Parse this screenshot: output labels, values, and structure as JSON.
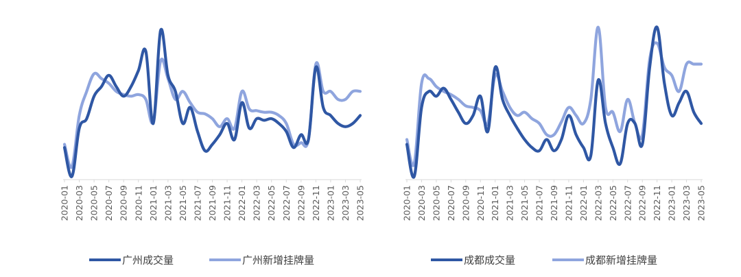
{
  "colors": {
    "dark": "#2F57A4",
    "light": "#8FA5DE",
    "axis": "#D9D9D9"
  },
  "chart_data": [
    {
      "type": "line",
      "categories": [
        "2020-01",
        "2020-02",
        "2020-03",
        "2020-04",
        "2020-05",
        "2020-06",
        "2020-07",
        "2020-08",
        "2020-09",
        "2020-10",
        "2020-11",
        "2020-12",
        "2021-01",
        "2021-02",
        "2021-03",
        "2021-04",
        "2021-05",
        "2021-06",
        "2021-07",
        "2021-08",
        "2021-09",
        "2021-10",
        "2021-11",
        "2021-12",
        "2022-01",
        "2022-02",
        "2022-03",
        "2022-04",
        "2022-05",
        "2022-06",
        "2022-07",
        "2022-08",
        "2022-09",
        "2022-10",
        "2022-11",
        "2022-12",
        "2023-01",
        "2023-02",
        "2023-03",
        "2023-04",
        "2023-05"
      ],
      "xtick_labels": [
        "2020-01",
        "2020-03",
        "2020-05",
        "2020-07",
        "2020-09",
        "2020-11",
        "2021-01",
        "2021-03",
        "2021-05",
        "2021-07",
        "2021-09",
        "2021-11",
        "2022-01",
        "2022-03",
        "2022-05",
        "2022-07",
        "2022-09",
        "2022-11",
        "2023-01",
        "2023-03",
        "2023-05"
      ],
      "series": [
        {
          "name": "广州成交量",
          "color": "#2F57A4",
          "values": [
            20,
            2,
            32,
            38,
            52,
            58,
            65,
            58,
            52,
            58,
            68,
            80,
            35,
            93,
            65,
            55,
            35,
            45,
            30,
            18,
            22,
            28,
            35,
            25,
            48,
            32,
            38,
            37,
            38,
            35,
            30,
            20,
            28,
            25,
            70,
            45,
            40,
            35,
            33,
            35,
            40
          ]
        },
        {
          "name": "广州新增挂牌量",
          "color": "#8FA5DE",
          "values": [
            22,
            8,
            40,
            55,
            66,
            63,
            60,
            55,
            53,
            52,
            53,
            50,
            36,
            74,
            63,
            50,
            55,
            48,
            42,
            41,
            38,
            33,
            38,
            32,
            55,
            44,
            43,
            42,
            42,
            40,
            35,
            22,
            23,
            25,
            72,
            55,
            55,
            50,
            50,
            55,
            55
          ]
        }
      ]
    },
    {
      "type": "line",
      "categories": [
        "2020-01",
        "2020-02",
        "2020-03",
        "2020-04",
        "2020-05",
        "2020-06",
        "2020-07",
        "2020-08",
        "2020-09",
        "2020-10",
        "2020-11",
        "2020-12",
        "2021-01",
        "2021-02",
        "2021-03",
        "2021-04",
        "2021-05",
        "2021-06",
        "2021-07",
        "2021-08",
        "2021-09",
        "2021-10",
        "2021-11",
        "2021-12",
        "2022-01",
        "2022-02",
        "2022-03",
        "2022-04",
        "2022-05",
        "2022-06",
        "2022-07",
        "2022-08",
        "2022-09",
        "2022-10",
        "2022-11",
        "2022-12",
        "2023-01",
        "2023-02",
        "2023-03",
        "2023-04",
        "2023-05"
      ],
      "xtick_labels": [
        "2020-01",
        "2020-03",
        "2020-05",
        "2020-07",
        "2020-09",
        "2020-11",
        "2021-01",
        "2021-03",
        "2021-05",
        "2021-07",
        "2021-09",
        "2021-11",
        "2022-01",
        "2022-03",
        "2022-05",
        "2022-07",
        "2022-09",
        "2022-11",
        "2023-01",
        "2023-03",
        "2023-05"
      ],
      "series": [
        {
          "name": "成都成交量",
          "color": "#2F57A4",
          "values": [
            22,
            2,
            45,
            55,
            52,
            57,
            50,
            42,
            35,
            40,
            52,
            30,
            70,
            50,
            40,
            32,
            25,
            20,
            18,
            25,
            18,
            25,
            40,
            28,
            20,
            15,
            62,
            35,
            20,
            10,
            35,
            35,
            22,
            70,
            95,
            60,
            40,
            48,
            55,
            42,
            35
          ]
        },
        {
          "name": "成都新增挂牌量",
          "color": "#8FA5DE",
          "values": [
            25,
            10,
            60,
            63,
            58,
            55,
            53,
            50,
            46,
            45,
            43,
            35,
            65,
            55,
            45,
            40,
            42,
            38,
            35,
            28,
            28,
            36,
            45,
            40,
            35,
            50,
            95,
            45,
            42,
            30,
            50,
            35,
            28,
            75,
            85,
            70,
            65,
            55,
            72,
            72,
            72
          ]
        }
      ]
    }
  ]
}
